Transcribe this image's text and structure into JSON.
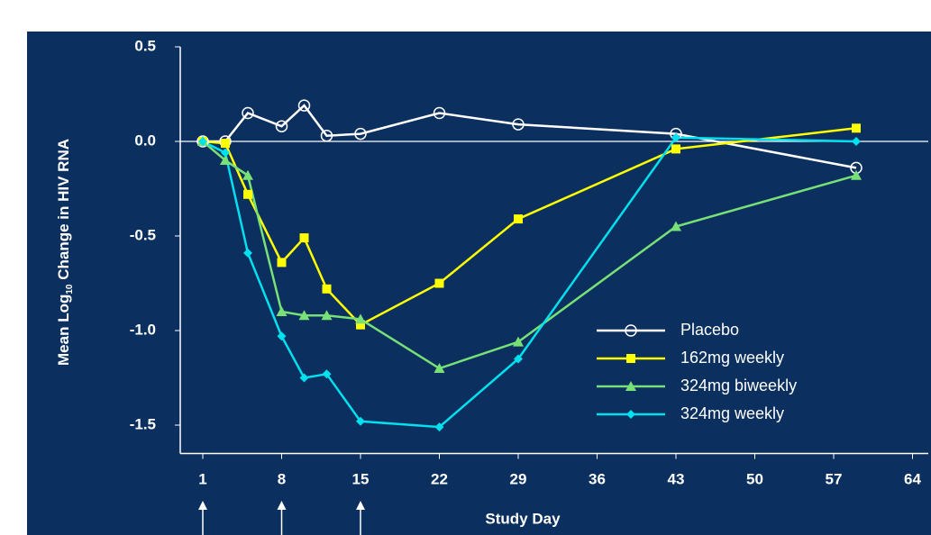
{
  "chart_data": {
    "type": "line",
    "xlabel": "Study Day",
    "ylabel": [
      "Mean Log",
      "10",
      " Change in HIV RNA"
    ],
    "xlim": [
      -1,
      65.4
    ],
    "ylim": [
      -1.65,
      0.5
    ],
    "xticks": [
      1,
      8,
      15,
      22,
      29,
      36,
      43,
      50,
      57,
      64
    ],
    "yticks": [
      0.5,
      {
        "value": 0,
        "label": "0.0"
      },
      -0.5,
      {
        "value": -1,
        "label": "-1.0"
      },
      -1.5
    ],
    "dose_days": [
      1,
      8,
      15
    ],
    "reference_line": 0,
    "series": [
      {
        "name": "Placebo",
        "color": "#ffffff",
        "marker": "circle",
        "x": [
          1,
          3,
          5,
          8,
          10,
          12,
          15,
          22,
          29,
          43,
          59
        ],
        "values": [
          0,
          0,
          0.15,
          0.08,
          0.19,
          0.03,
          0.04,
          0.15,
          0.09,
          0.04,
          -0.14
        ]
      },
      {
        "name": "162mg weekly",
        "color": "#ffff00",
        "marker": "square",
        "x": [
          1,
          3,
          5,
          8,
          10,
          12,
          15,
          22,
          29,
          43,
          59
        ],
        "values": [
          0,
          -0.01,
          -0.28,
          -0.64,
          -0.51,
          -0.78,
          -0.97,
          -0.75,
          -0.41,
          -0.04,
          0.07
        ]
      },
      {
        "name": "324mg biweekly",
        "color": "#77e077",
        "marker": "triangle",
        "x": [
          1,
          3,
          5,
          8,
          10,
          12,
          15,
          22,
          29,
          43,
          59
        ],
        "values": [
          0,
          -0.1,
          -0.18,
          -0.9,
          -0.92,
          -0.92,
          -0.94,
          -1.2,
          -1.06,
          -0.45,
          -0.18
        ]
      },
      {
        "name": "324mg weekly",
        "color": "#00e0ee",
        "marker": "diamond",
        "x": [
          1,
          3,
          5,
          8,
          10,
          12,
          15,
          22,
          29,
          43,
          59
        ],
        "values": [
          0,
          -0.06,
          -0.59,
          -1.03,
          -1.25,
          -1.23,
          -1.48,
          -1.51,
          -1.15,
          0.02,
          0
        ]
      }
    ]
  }
}
